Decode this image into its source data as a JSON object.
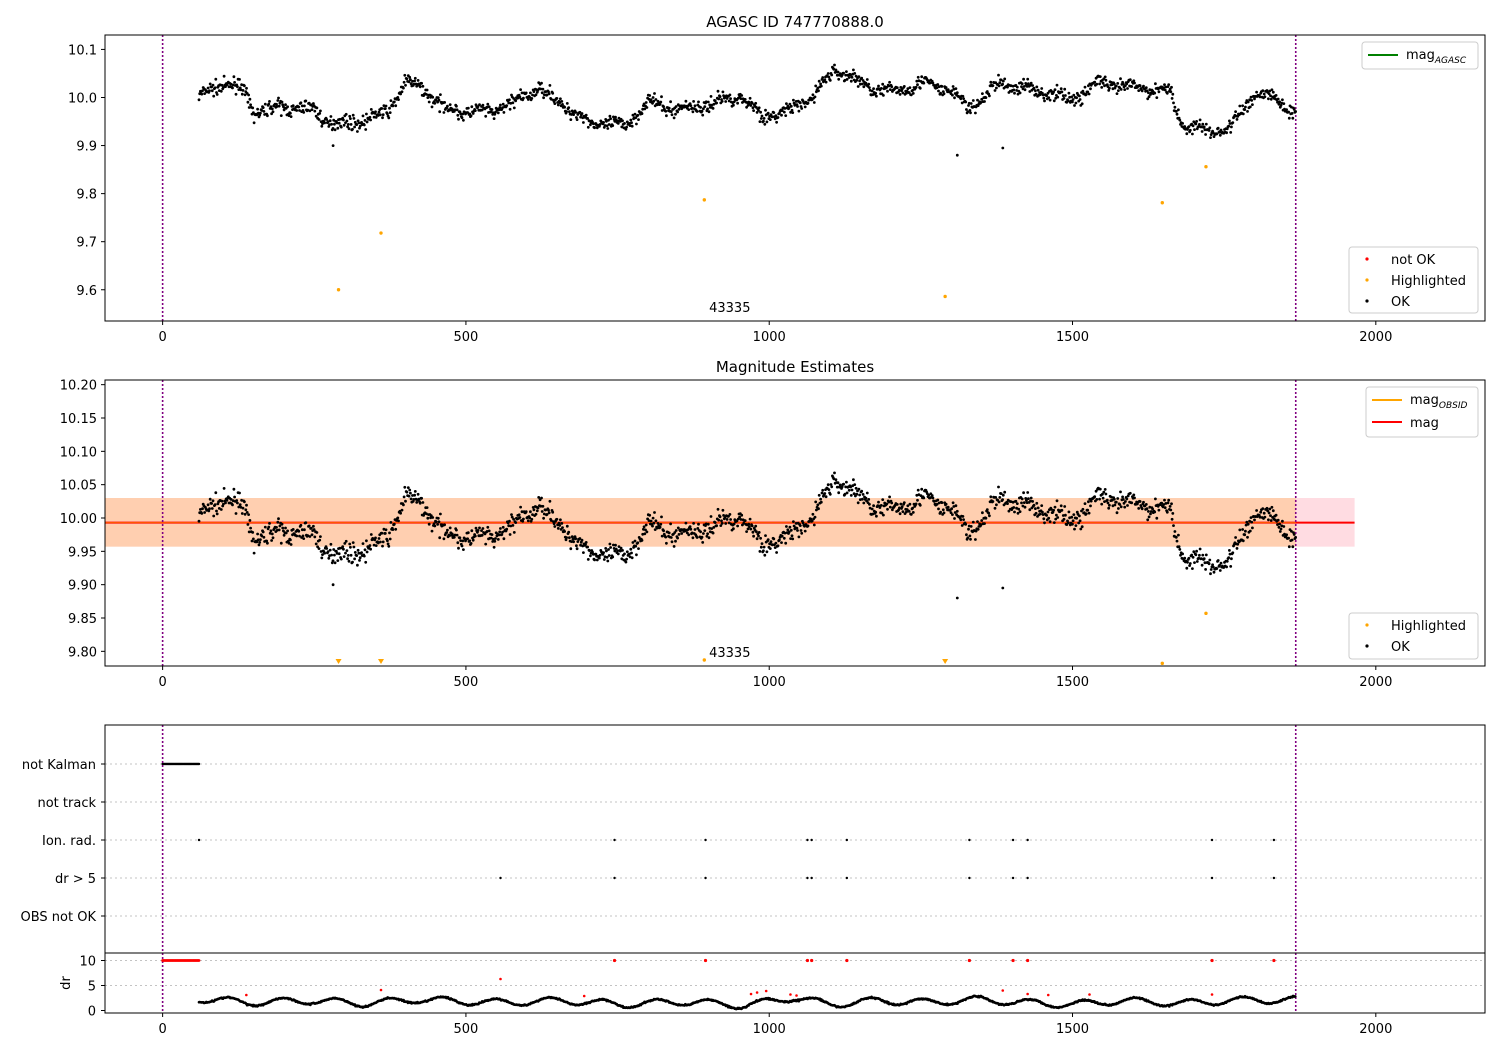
{
  "figure": {
    "title": "AGASC ID 747770888.0"
  },
  "chart_data": [
    {
      "type": "scatter",
      "title": "",
      "xlabel": "",
      "ylabel": "",
      "xlim": [
        -95,
        2180
      ],
      "ylim": [
        9.535,
        10.13
      ],
      "xticks": [
        "0",
        "500",
        "1000",
        "1500",
        "2000"
      ],
      "yticks": [
        "9.6",
        "9.7",
        "9.8",
        "9.9",
        "10.0",
        "10.1"
      ],
      "vlines": [
        0,
        1868
      ],
      "obsid_label": {
        "text": "43335",
        "x": 935
      },
      "legend_top": {
        "location": "upper right",
        "entries": [
          {
            "label": "mag",
            "sub": "AGASC",
            "color": "#008000"
          }
        ]
      },
      "legend_bottom": {
        "location": "lower right",
        "entries": [
          {
            "label": "not OK",
            "color": "#ff0000"
          },
          {
            "label": "Highlighted",
            "color": "#ffa500"
          },
          {
            "label": "OK",
            "color": "#000000"
          }
        ]
      },
      "series": [
        {
          "name": "Highlighted",
          "color": "#ffa500",
          "points": [
            [
              290,
              9.6
            ],
            [
              360,
              9.718
            ],
            [
              893,
              9.787
            ],
            [
              1290,
              9.586
            ],
            [
              1648,
              9.781
            ],
            [
              1720,
              9.856
            ]
          ]
        },
        {
          "name": "OK",
          "color": "#000000",
          "trend": [
            [
              60,
              10.0
            ],
            [
              100,
              10.03
            ],
            [
              130,
              10.02
            ],
            [
              150,
              9.97
            ],
            [
              200,
              9.98
            ],
            [
              250,
              9.975
            ],
            [
              270,
              9.95
            ],
            [
              300,
              9.945
            ],
            [
              340,
              9.955
            ],
            [
              370,
              9.97
            ],
            [
              400,
              10.03
            ],
            [
              430,
              10.02
            ],
            [
              460,
              9.98
            ],
            [
              500,
              9.97
            ],
            [
              540,
              9.97
            ],
            [
              580,
              9.99
            ],
            [
              620,
              10.02
            ],
            [
              660,
              9.985
            ],
            [
              700,
              9.95
            ],
            [
              760,
              9.94
            ],
            [
              800,
              9.99
            ],
            [
              850,
              9.975
            ],
            [
              900,
              9.985
            ],
            [
              950,
              10.005
            ],
            [
              990,
              9.96
            ],
            [
              1030,
              9.97
            ],
            [
              1070,
              10.0
            ],
            [
              1110,
              10.06
            ],
            [
              1150,
              10.03
            ],
            [
              1200,
              10.01
            ],
            [
              1250,
              10.03
            ],
            [
              1300,
              10.015
            ],
            [
              1330,
              9.975
            ],
            [
              1380,
              10.03
            ],
            [
              1420,
              10.02
            ],
            [
              1460,
              10.01
            ],
            [
              1500,
              9.995
            ],
            [
              1540,
              10.03
            ],
            [
              1600,
              10.02
            ],
            [
              1660,
              10.015
            ],
            [
              1680,
              9.945
            ],
            [
              1720,
              9.93
            ],
            [
              1760,
              9.935
            ],
            [
              1800,
              10.01
            ],
            [
              1840,
              9.995
            ],
            [
              1868,
              9.965
            ]
          ],
          "outliers": [
            [
              281,
              9.9
            ],
            [
              1310,
              9.88
            ],
            [
              1385,
              9.895
            ]
          ],
          "spread": 0.014
        }
      ]
    },
    {
      "type": "scatter",
      "title": "Magnitude Estimates",
      "xlabel": "",
      "ylabel": "",
      "xlim": [
        -95,
        2180
      ],
      "ylim": [
        9.778,
        10.207
      ],
      "xticks": [
        "0",
        "500",
        "1000",
        "1500",
        "2000"
      ],
      "yticks": [
        "9.80",
        "9.85",
        "9.90",
        "9.95",
        "10.00",
        "10.05",
        "10.10",
        "10.15",
        "10.20"
      ],
      "vlines": [
        0,
        1868
      ],
      "obsid_label": {
        "text": "43335",
        "x": 935
      },
      "mag_line": 9.993,
      "band_pink": {
        "x": [
          -95,
          1965
        ],
        "y": [
          9.957,
          10.03
        ]
      },
      "band_orange": {
        "x": [
          -95,
          1868
        ],
        "y": [
          9.957,
          10.03
        ]
      },
      "legend_top": {
        "location": "upper right",
        "entries": [
          {
            "label": "mag",
            "sub": "OBSID",
            "color": "#ffa500"
          },
          {
            "label": "mag",
            "sub": "",
            "color": "#ff0000"
          }
        ]
      },
      "legend_bottom": {
        "location": "lower right",
        "entries": [
          {
            "label": "Highlighted",
            "color": "#ffa500"
          },
          {
            "label": "OK",
            "color": "#000000"
          }
        ]
      },
      "series": [
        {
          "name": "Highlighted",
          "color": "#ffa500",
          "points": [
            [
              1720,
              9.857
            ],
            [
              893,
              9.787
            ],
            [
              1648,
              9.782
            ]
          ],
          "clipped_x": [
            290,
            360,
            1290
          ]
        },
        {
          "name": "OK",
          "color": "#000000"
        }
      ]
    },
    {
      "type": "scatter",
      "title": "",
      "xlabel": "",
      "ylabel": "",
      "xlim": [
        -95,
        2180
      ],
      "xticks": [
        "0",
        "500",
        "1000",
        "1500",
        "2000"
      ],
      "vlines": [
        0,
        1868
      ],
      "flag_rows": [
        "not Kalman",
        "not track",
        "Ion. rad.",
        "dr > 5",
        "OBS not OK"
      ],
      "flags": {
        "not Kalman": {
          "range": [
            0,
            60
          ]
        },
        "not track": {
          "xs": []
        },
        "Ion. rad.": {
          "xs": [
            60,
            745,
            895,
            1063,
            1070,
            1128,
            1330,
            1402,
            1426,
            1730,
            1832
          ]
        },
        "dr > 5": {
          "xs": [
            557,
            745,
            895,
            1063,
            1070,
            1128,
            1330,
            1402,
            1426,
            1730,
            1832
          ]
        },
        "OBS not OK": {
          "xs": []
        }
      },
      "dr": {
        "ylabel": "dr",
        "ylim": [
          -0.5,
          11.5
        ],
        "yticks": [
          "0",
          "5",
          "10"
        ],
        "baseline": [
          [
            60,
            2.4
          ],
          [
            140,
            1.6
          ],
          [
            250,
            2.0
          ],
          [
            330,
            1.4
          ],
          [
            420,
            2.2
          ],
          [
            500,
            1.8
          ],
          [
            560,
            1.6
          ],
          [
            660,
            2.0
          ],
          [
            760,
            1.2
          ],
          [
            860,
            1.8
          ],
          [
            960,
            1.0
          ],
          [
            1040,
            2.6
          ],
          [
            1100,
            1.2
          ],
          [
            1180,
            2.0
          ],
          [
            1260,
            1.6
          ],
          [
            1340,
            2.2
          ],
          [
            1420,
            1.6
          ],
          [
            1500,
            1.2
          ],
          [
            1580,
            2.0
          ],
          [
            1680,
            1.4
          ],
          [
            1760,
            2.0
          ],
          [
            1868,
            2.2
          ]
        ],
        "red_high_range": [
          0,
          60
        ],
        "red_high_xs": [
          745,
          895,
          1063,
          1070,
          1128,
          1330,
          1402,
          1426,
          1730,
          1832
        ],
        "red_mid": [
          [
            138,
            3.1
          ],
          [
            360,
            4.1
          ],
          [
            557,
            6.3
          ],
          [
            695,
            2.9
          ],
          [
            970,
            3.3
          ],
          [
            980,
            3.6
          ],
          [
            995,
            3.9
          ],
          [
            1035,
            3.2
          ],
          [
            1045,
            3.0
          ],
          [
            1385,
            4.0
          ],
          [
            1426,
            3.3
          ],
          [
            1460,
            3.1
          ],
          [
            1528,
            3.2
          ],
          [
            1730,
            3.2
          ]
        ]
      }
    }
  ]
}
